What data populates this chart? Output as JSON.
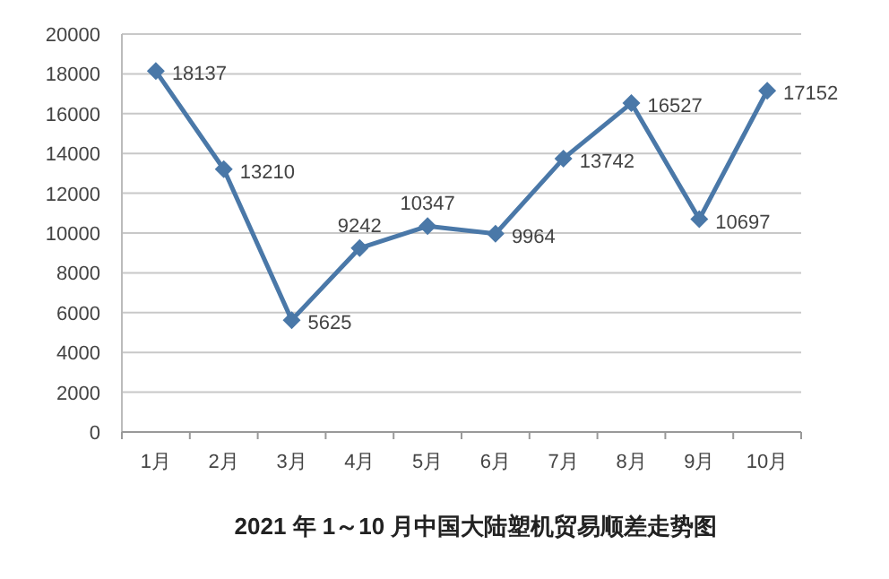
{
  "chart_data": {
    "type": "line",
    "title": "2021 年 1～10 月中国大陆塑机贸易顺差走势图",
    "categories": [
      "1月",
      "2月",
      "3月",
      "4月",
      "5月",
      "6月",
      "7月",
      "8月",
      "9月",
      "10月"
    ],
    "values": [
      18137,
      13210,
      5625,
      9242,
      10347,
      9964,
      13742,
      16527,
      10697,
      17152
    ],
    "color": "#4a78a8",
    "ylim": [
      0,
      20000
    ],
    "yticks": [
      0,
      2000,
      4000,
      6000,
      8000,
      10000,
      12000,
      14000,
      16000,
      18000,
      20000
    ],
    "grid": "y",
    "marker": "diamond",
    "line_style": "solid",
    "data_labels": true
  }
}
